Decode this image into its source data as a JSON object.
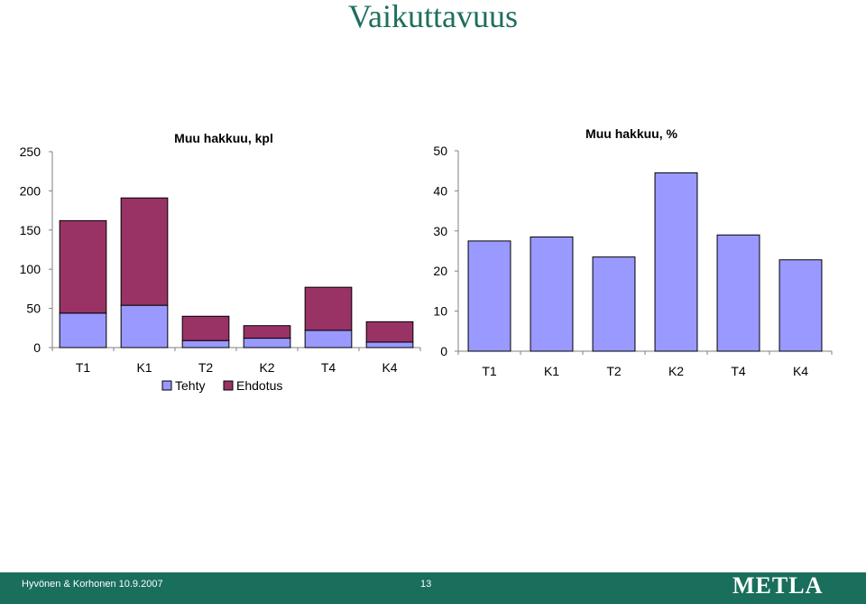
{
  "slide": {
    "title": "Vaikuttavuus",
    "footer_author": "Hyvönen & Korhonen 10.9.2007",
    "page_number": "13",
    "logo": "METLA",
    "footer_color": "#1a6e5c",
    "title_color": "#1d6f5e"
  },
  "chart_data": [
    {
      "type": "bar",
      "stacked": true,
      "title": "Muu hakkuu, kpl",
      "categories": [
        "T1",
        "K1",
        "T2",
        "K2",
        "T4",
        "K4"
      ],
      "series": [
        {
          "name": "Tehty",
          "values": [
            44,
            54,
            9,
            12,
            22,
            7
          ],
          "color": "#9999ff"
        },
        {
          "name": "Ehdotus",
          "values": [
            118,
            137,
            31,
            16,
            55,
            26
          ],
          "color": "#993366"
        }
      ],
      "ylim": [
        0,
        250
      ],
      "yticks": [
        0,
        50,
        100,
        150,
        200,
        250
      ],
      "grid": false,
      "legend": "bottom"
    },
    {
      "type": "bar",
      "title": "Muu hakkuu, %",
      "categories": [
        "T1",
        "K1",
        "T2",
        "K2",
        "T4",
        "K4"
      ],
      "series": [
        {
          "values": [
            27.5,
            28.5,
            23.5,
            44.5,
            29,
            22.8
          ],
          "color": "#9999ff"
        }
      ],
      "ylim": [
        0,
        50
      ],
      "yticks": [
        0,
        10,
        20,
        30,
        40,
        50
      ],
      "grid": false
    }
  ]
}
